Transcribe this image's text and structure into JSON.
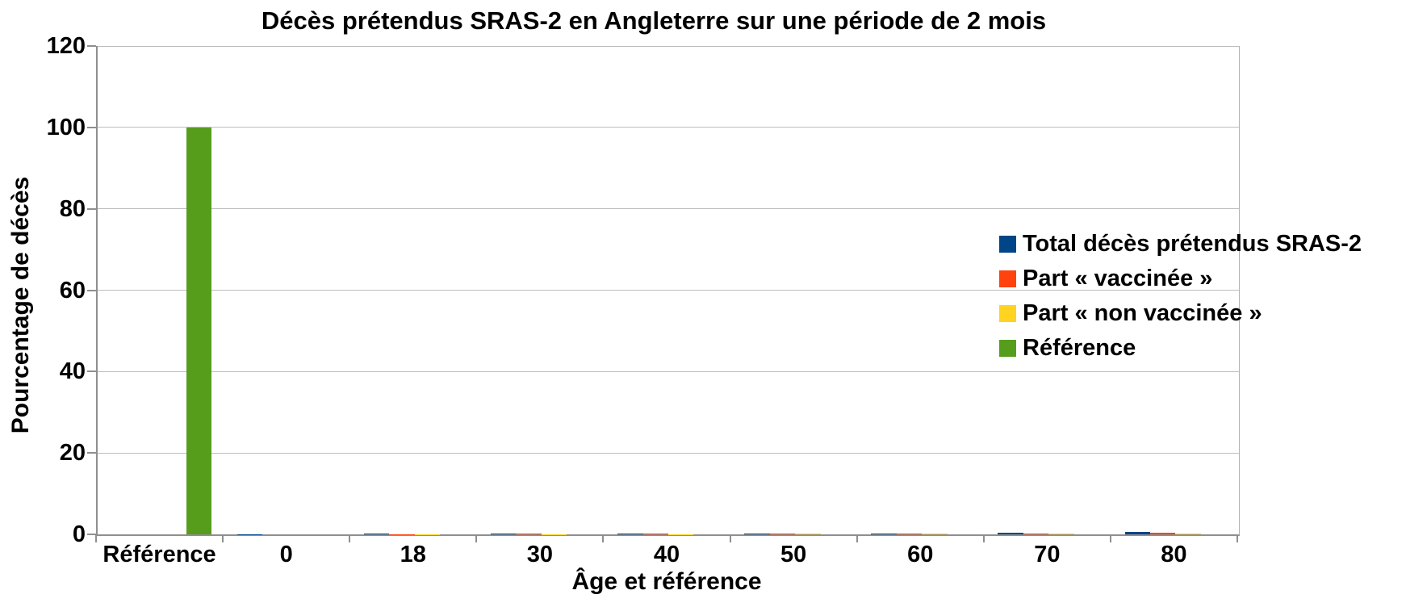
{
  "title": "Décès prétendus SRAS-2 en Angleterre sur une période de 2 mois",
  "y_axis": {
    "title": "Pourcentage de décès",
    "tick_labels": [
      "0",
      "20",
      "40",
      "60",
      "80",
      "100",
      "120"
    ]
  },
  "x_axis": {
    "title": "Âge et référence",
    "tick_labels": [
      "Référence",
      "0",
      "18",
      "30",
      "40",
      "50",
      "60",
      "70",
      "80"
    ]
  },
  "legend": {
    "position": "right",
    "items": [
      {
        "label": "Total décès prétendus SRAS-2",
        "color": "#004586"
      },
      {
        "label": "Part « vaccinée »",
        "color": "#ff420e"
      },
      {
        "label": "Part « non vaccinée »",
        "color": "#ffd320"
      },
      {
        "label": "Référence",
        "color": "#579d1c"
      }
    ]
  },
  "chart_data": {
    "type": "bar",
    "title": "Décès prétendus SRAS-2 en Angleterre sur une période de 2 mois",
    "xlabel": "Âge et référence",
    "ylabel": "Pourcentage de décès",
    "categories": [
      "Référence",
      "0",
      "18",
      "30",
      "40",
      "50",
      "60",
      "70",
      "80"
    ],
    "yticks": [
      0,
      20,
      40,
      60,
      80,
      100,
      120
    ],
    "ylim": [
      0,
      120
    ],
    "grid": "horizontal",
    "legend_position": "right",
    "series": [
      {
        "name": "Total décès prétendus SRAS-2",
        "color": "#004586",
        "values": [
          0,
          0.02,
          0.15,
          0.2,
          0.2,
          0.25,
          0.3,
          0.45,
          0.6
        ]
      },
      {
        "name": "Part « vaccinée »",
        "color": "#ff420e",
        "values": [
          0,
          0.01,
          0.1,
          0.15,
          0.15,
          0.2,
          0.2,
          0.25,
          0.35
        ]
      },
      {
        "name": "Part « non vaccinée »",
        "color": "#ffd320",
        "values": [
          0,
          0.01,
          0.05,
          0.1,
          0.1,
          0.15,
          0.15,
          0.2,
          0.25
        ]
      },
      {
        "name": "Référence",
        "color": "#579d1c",
        "values": [
          100,
          0,
          0,
          0,
          0,
          0,
          0,
          0,
          0
        ]
      }
    ]
  }
}
